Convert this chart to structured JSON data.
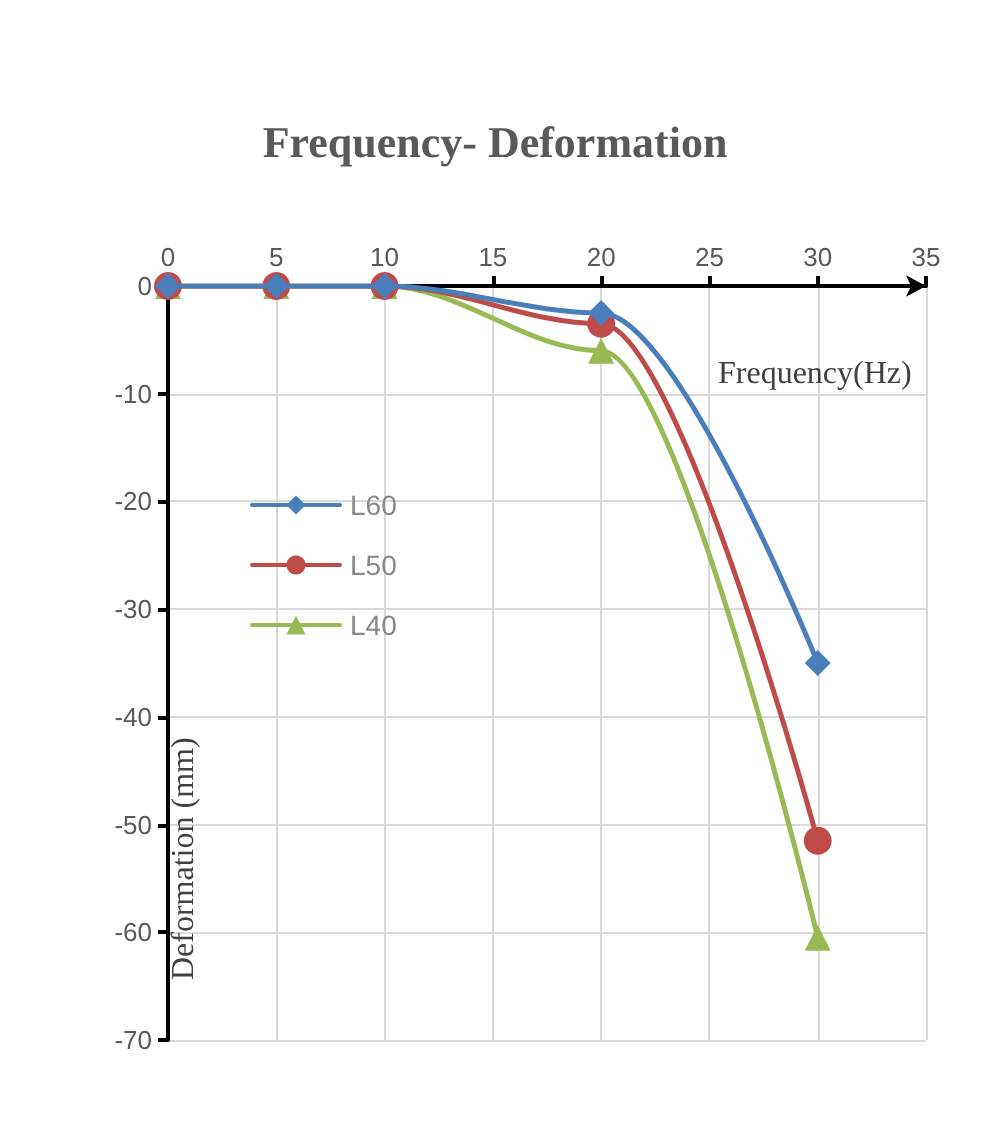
{
  "chart_data": {
    "type": "line",
    "title": "Frequency- Deformation",
    "xlabel": "Frequency(Hz)",
    "ylabel": "Deformation (mm)",
    "x": [
      0,
      5,
      10,
      20,
      30
    ],
    "series": [
      {
        "name": "L60",
        "color": "#4a7ebb",
        "marker": "diamond",
        "values": [
          0,
          0,
          0,
          -2.5,
          -35
        ]
      },
      {
        "name": "L50",
        "color": "#be4b48",
        "marker": "circle",
        "values": [
          0,
          0,
          0,
          -3.5,
          -51.5
        ]
      },
      {
        "name": "L40",
        "color": "#98b954",
        "marker": "triangle",
        "values": [
          0,
          0,
          0,
          -6,
          -60.5
        ]
      }
    ],
    "xlim": [
      0,
      35
    ],
    "xticks": [
      0,
      5,
      10,
      15,
      20,
      25,
      30,
      35
    ],
    "ylim": [
      -70,
      0
    ],
    "yticks": [
      -70,
      -60,
      -50,
      -40,
      -30,
      -20,
      -10,
      0
    ],
    "grid": true,
    "legend": "left"
  }
}
